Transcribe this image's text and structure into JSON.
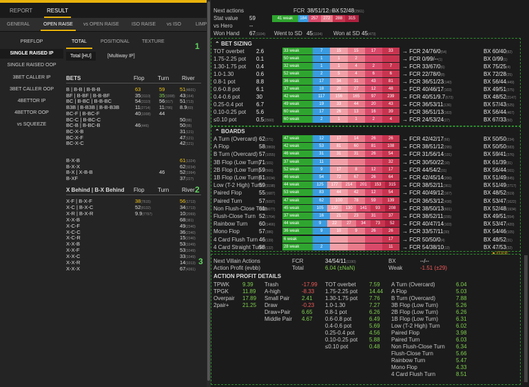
{
  "tabs_top": [
    "REPORT",
    "RESULT"
  ],
  "tabs_second": [
    "GENERAL",
    "OPEN RAISE",
    "vs OPEN RAISE",
    "ISO RAISE",
    "vs ISO",
    "LIMP"
  ],
  "left_nav": [
    "PREFLOP",
    "SINGLE RAISED IP",
    "SINGLE RAISED OOP",
    "3BET CALLER IP",
    "3BET CALLER OOP",
    "4BETTOR IP",
    "4BETTOR OOP",
    "vs SQUEEZE"
  ],
  "subtabs": [
    "TOTAL",
    "POSITIONAL",
    "TEXTURE"
  ],
  "pills": [
    "Total [HU]",
    "[Multiway IP]"
  ],
  "bets_header": {
    "bets": "BETS",
    "flop": "Flop",
    "turn": "Turn",
    "river": "River"
  },
  "bets_rows": [
    {
      "label": "B | B-B | B-B-B",
      "flop": "63",
      "turn": "59",
      "river": "51",
      "river_n": "(4601)"
    },
    {
      "label": "BF | B-BF | B-B-BF",
      "flop": "35",
      "flop_n": "(3110)",
      "turn": "35",
      "turn_n": "(1008)",
      "river": "43",
      "river_n": "(164)"
    },
    {
      "label": "BC | B-BC | B-B-BC",
      "flop": "54",
      "flop_n": "(3110)",
      "turn": "56",
      "turn_n": "(917)",
      "river": "51",
      "river_n": "(713)"
    },
    {
      "label": "B3B | B-B3B | B-B-B3B",
      "flop": "11",
      "flop_n": "(2714)",
      "turn": "11",
      "turn_n": "(786)",
      "river": "8.9",
      "river_n": "(60)"
    },
    {
      "label": "BC-F | B-BC-F",
      "flop": "40",
      "flop_n": "(1008)",
      "turn": "44",
      "turn_n": "",
      "river": "",
      "": ""
    },
    {
      "label": "BC-C | B-BC-C",
      "flop": "",
      "turn": "",
      "river": "50",
      "river_n": "(88)"
    },
    {
      "label": "BC-B | B-BC-B",
      "flop": "46",
      "flop_n": "(446)",
      "turn": "",
      "river": "50",
      "river_n": "(88)"
    },
    {
      "label": "BC-X-B",
      "flop": "",
      "turn": "",
      "river": "31",
      "river_n": "(121)"
    },
    {
      "label": "BC-X-F",
      "flop": "",
      "turn": "",
      "river": "47",
      "river_n": "(121)"
    },
    {
      "label": "BC-X-C",
      "flop": "",
      "turn": "",
      "river": "42",
      "river_n": "(121)"
    }
  ],
  "bets_rows_b": [
    {
      "label": "B-X-B",
      "flop": "",
      "turn": "",
      "river": "61",
      "river_n": "(1324)"
    },
    {
      "label": "B-X-X",
      "flop": "",
      "turn": "",
      "river": "62",
      "river_n": "(3234)"
    },
    {
      "label": "B-X | X-B-B",
      "flop": "",
      "turn": "46",
      "turn_n": "",
      "river": "52",
      "river_n": "(1994)"
    },
    {
      "label": "B-XF",
      "flop": "",
      "turn": "",
      "river": "37",
      "river_n": "(227)"
    }
  ],
  "xbehind_header": {
    "label": "X Behind | B-X Behind",
    "flop": "Flop",
    "turn": "Turn",
    "river": "River"
  },
  "xbehind_rows": [
    {
      "label": "X-F | B-X-F",
      "flop": "38",
      "flop_n": "(7615)",
      "turn": "",
      "river": "56",
      "river_n": "(1713)"
    },
    {
      "label": "X-C | B-X-C",
      "flop": "52",
      "flop_n": "(8132)",
      "turn": "",
      "river": "34",
      "river_n": "(1713)"
    },
    {
      "label": "X-R | B-X-R",
      "flop": "9.9",
      "flop_n": "(7797)",
      "turn": "",
      "river": "10",
      "river_n": "(2069)"
    },
    {
      "label": "X-X-B",
      "flop": "",
      "turn": "",
      "river": "68",
      "river_n": "(381)"
    },
    {
      "label": "X-C-F",
      "flop": "",
      "turn": "",
      "river": "49",
      "river_n": "(2340)"
    },
    {
      "label": "X-C-C",
      "flop": "",
      "turn": "",
      "river": "36",
      "river_n": "(2340)"
    },
    {
      "label": "X-C-R",
      "flop": "",
      "turn": "",
      "river": "15",
      "river_n": "(2340)"
    },
    {
      "label": "X-X-B",
      "flop": "",
      "turn": "",
      "river": "53",
      "river_n": "(1049)"
    },
    {
      "label": "X-X-F",
      "flop": "",
      "turn": "",
      "river": "53",
      "river_n": "(1049)"
    },
    {
      "label": "X-X-C",
      "flop": "",
      "turn": "",
      "river": "33",
      "river_n": "(1049)"
    },
    {
      "label": "X-X-R",
      "flop": "",
      "turn": "",
      "river": "14",
      "river_n": "(1013)"
    },
    {
      "label": "X-X-X",
      "flop": "",
      "turn": "",
      "river": "67",
      "river_n": "(4361)"
    }
  ],
  "markers": [
    "1",
    "2",
    "3"
  ],
  "top_summary": {
    "next_actions": "Next actions",
    "fcr_label": "FCR",
    "fcr": "38/51/12",
    "fcr_n": "(2560)",
    "bx_label": "BX",
    "bx": "52/48",
    "bx_n": "(2561)",
    "stat_value_label": "Stat value",
    "stat_value": "59",
    "vs_hero_label": "vs Hero",
    "vs_hero": "--",
    "won_hand_label": "Won Hand",
    "won_hand": "67",
    "won_hand_n": "(1104)",
    "wtsd_label": "Went to SD",
    "wtsd": "45",
    "wtsd_n": "(1104)",
    "wsd_label": "Won at SD",
    "wsd": "45",
    "wsd_n": "(473)",
    "bar": [
      {
        "t": "41 weak",
        "c": "#2fa52f",
        "w": 30
      },
      {
        "t": "184",
        "c": "#3a9be0",
        "w": 12
      },
      {
        "t": "257",
        "c": "#d94a6a",
        "w": 14
      },
      {
        "t": "272",
        "c": "#e87a8a",
        "w": 14
      },
      {
        "t": "288",
        "c": "#c8344f",
        "w": 14
      },
      {
        "t": "315",
        "c": "#b0203f",
        "w": 16
      }
    ]
  },
  "bet_sizing_title": "BET SIZING",
  "bet_sizing": [
    {
      "label": "TOT overbet",
      "v": "2.6",
      "weak": "33 weak",
      "segs": [
        "7",
        "15",
        "15",
        "17",
        "33"
      ],
      "fcr": "24/76/0",
      "fcr_n": "(54)",
      "bx": "60/40",
      "bx_n": "(82)"
    },
    {
      "label": "1.75-2.25 pot",
      "v": "0.1",
      "weak": "50 weak",
      "segs": [
        "1",
        "1",
        "2",
        "",
        ""
      ],
      "fcr": "0/99/--",
      "fcr_n": "(1)",
      "bx": "0/99",
      "bx_n": "(1)"
    },
    {
      "label": "1.30-1.75 pot",
      "v": "0.4",
      "weak": "32 weak",
      "segs": [
        "1",
        "1",
        "4",
        "2",
        "7"
      ],
      "fcr": "33/67/0",
      "fcr_n": "(6)",
      "bx": "75/25",
      "bx_n": "(4)"
    },
    {
      "label": "1.0-1.30",
      "v": "0.6",
      "weak": "52 weak",
      "segs": [
        "2",
        "5",
        "4",
        "6",
        "6"
      ],
      "fcr": "22/78/0",
      "fcr_n": "(8)",
      "bx": "72/28",
      "bx_n": "(25)"
    },
    {
      "label": "0.8-1 pot",
      "v": "8.8",
      "weak": "36 weak",
      "segs": [
        "17",
        "34",
        "31",
        "43",
        "81"
      ],
      "fcr": "36/51/23",
      "fcr_n": "(140)",
      "bx": "56/44",
      "bx_n": "(449)"
    },
    {
      "label": "0.6-0.8 pot",
      "v": "6.1",
      "weak": "37 weak",
      "segs": [
        "18",
        "20",
        "27",
        "12",
        "48"
      ],
      "fcr": "40/46/17",
      "fcr_n": "(103)",
      "bx": "49/51",
      "bx_n": "(375)"
    },
    {
      "label": "0.4-0.6 pot",
      "v": "30",
      "weak": "42 weak",
      "segs": [
        "117",
        "156",
        "165",
        "97",
        "239"
      ],
      "fcr": "40/51/9.7",
      "fcr_n": "(673)",
      "bx": "48/52",
      "bx_n": "(2147)"
    },
    {
      "label": "0.25-0.4 pot",
      "v": "6.7",
      "weak": "49 weak",
      "segs": [
        "19",
        "33",
        "44",
        "20",
        "43"
      ],
      "fcr": "36/53/11",
      "fcr_n": "(136)",
      "bx": "57/43",
      "bx_n": "(525)"
    },
    {
      "label": "0.10-0.25 pot",
      "v": "5.6",
      "weak": "60 weak",
      "segs": [
        "17",
        "26",
        "13",
        "16",
        "39"
      ],
      "fcr": "36/51/13",
      "fcr_n": "(163)",
      "bx": "56/44",
      "bx_n": "(467)"
    },
    {
      "label": "≤0.10 pot",
      "v": "0.5",
      "v_n": "(2560)",
      "weak": "60 weak",
      "segs": [
        "2",
        "1",
        "1",
        "2",
        "4"
      ],
      "fcr": "24/53/24",
      "fcr_n": "(27)",
      "bx": "67/33",
      "bx_n": "(50)"
    }
  ],
  "boards_title": "BOARDS",
  "boards": [
    {
      "label": "A Turn (Overcard)",
      "v": "62",
      "v_n": "(271)",
      "weak": "47 weak",
      "segs": [
        "12",
        "17",
        "14",
        "26",
        "26"
      ],
      "fcr": "42/42/17",
      "fcr_n": "(66)",
      "bx": "50/50",
      "bx_n": "(234)"
    },
    {
      "label": "A Flop",
      "v": "58",
      "v_n": "(2869)",
      "weak": "42 weak",
      "segs": [
        "53",
        "81",
        "60",
        "81",
        "108"
      ],
      "fcr": "38/51/12",
      "fcr_n": "(295)",
      "bx": "50/50",
      "bx_n": "(583)"
    },
    {
      "label": "B Turn (Overcard)",
      "v": "57",
      "v_n": "(1055)",
      "weak": "46 weak",
      "segs": [
        "31",
        "31",
        "31",
        "26",
        "54"
      ],
      "fcr": "31/56/14",
      "fcr_n": "(131)",
      "bx": "59/41",
      "bx_n": "(376)"
    },
    {
      "label": "3B Flop (Low Turn)",
      "v": "71",
      "v_n": "(101)",
      "weak": "37 weak",
      "segs": [
        "11",
        "",
        "",
        "",
        "32"
      ],
      "fcr": "30/50/22",
      "fcr_n": "(10)",
      "bx": "61/39",
      "bx_n": "(31)"
    },
    {
      "label": "2B Flop (Low Turn)",
      "v": "59",
      "v_n": "(566)",
      "weak": "52 weak",
      "segs": [
        "9",
        "17",
        "8",
        "12",
        "17"
      ],
      "fcr": "44/54/2",
      "fcr_n": "(31)",
      "bx": "56/44",
      "bx_n": "(161)"
    },
    {
      "label": "1B Flop (Low Turn)",
      "v": "61",
      "v_n": "(2034)",
      "weak": "46 weak",
      "segs": [
        "54",
        "72",
        "67",
        "26",
        "64"
      ],
      "fcr": "42/45/14",
      "fcr_n": "(206)",
      "bx": "51/49",
      "bx_n": "(845)"
    },
    {
      "label": "Low (T-2 High) Turn",
      "v": "59",
      "v_n": "(3198)",
      "weak": "44 weak",
      "segs": [
        "125",
        "177",
        "214",
        "201",
        "153",
        "315"
      ],
      "fcr": "38/52/11",
      "fcr_n": "(361)",
      "bx": "51/49",
      "bx_n": "(2717)"
    },
    {
      "label": "Paired Flop",
      "v": "55",
      "v_n": "(1687)",
      "weak": "53 weak",
      "segs": [
        "83",
        "44",
        "42",
        "12",
        "54"
      ],
      "fcr": "40/49/12",
      "fcr_n": "(167)",
      "bx": "48/52",
      "bx_n": "(519)"
    },
    {
      "label": "Paired Turn",
      "v": "57",
      "v_n": "(5097)",
      "weak": "47 weak",
      "segs": [
        "62",
        "100",
        "78",
        "59",
        "139"
      ],
      "fcr": "36/53/12",
      "fcr_n": "(438)",
      "bx": "53/47",
      "bx_n": "(1622)"
    },
    {
      "label": "Non Flush-Close Turn",
      "v": "61",
      "v_n": "(5677)",
      "weak": "45 weak",
      "segs": [
        "105",
        "120",
        "130",
        "141",
        "93",
        "208"
      ],
      "fcr": "38/50/13",
      "fcr_n": "(601)",
      "bx": "52/48",
      "bx_n": "(1934)"
    },
    {
      "label": "Flush-Close Turn",
      "v": "52",
      "v_n": "(1764)",
      "weak": "37 weak",
      "segs": [
        "16",
        "21",
        "23",
        "31",
        "37"
      ],
      "fcr": "38/52/11",
      "fcr_n": "(155)",
      "bx": "49/51",
      "bx_n": "(554)"
    },
    {
      "label": "Rainbow Turn",
      "v": "60",
      "v_n": "(1466)",
      "weak": "44 weak",
      "segs": [
        "9",
        "22",
        "27",
        "34",
        "73",
        "52"
      ],
      "fcr": "40/47/14",
      "fcr_n": "(103)",
      "bx": "53/47",
      "bx_n": "(420)"
    },
    {
      "label": "Mono Flop",
      "v": "57",
      "v_n": "(386)",
      "weak": "36 weak",
      "segs": [
        "9",
        "10",
        "9",
        "26",
        "26"
      ],
      "fcr": "33/57/11",
      "fcr_n": "(30)",
      "bx": "54/46",
      "bx_n": "(105)"
    },
    {
      "label": "4 Card Flush Turn",
      "v": "46",
      "v_n": "(139)",
      "weak": "6 weak",
      "segs": [
        "",
        "",
        "",
        "",
        "17"
      ],
      "fcr": "50/50/0",
      "fcr_n": "(4)",
      "bx": "48/52",
      "bx_n": "(31)"
    },
    {
      "label": "4 Card Straight Turn",
      "v": "58",
      "v_n": "(132)",
      "weak": "28 weak",
      "segs": [
        "2",
        "",
        "",
        "",
        "11"
      ],
      "fcr": "54/38/10",
      "fcr_n": "(13)",
      "bx": "47/53",
      "bx_n": "(32)"
    }
  ],
  "edge_label": "EDGE",
  "villain": {
    "next_label": "Next Villain Actions",
    "ap_label": "Action Profit (evbb)",
    "fcr_label": "FCR",
    "total_label": "Total",
    "fcr": "34/54/11",
    "fcr_n": "(1190)",
    "total": "6.04",
    "total_sub": "(±NaN)",
    "bx_label": "BX",
    "weak_label": "Weak",
    "bx": "--/--",
    "weak": "-1.51",
    "weak_sub": "(±29)"
  },
  "apd_title": "ACTION PROFIT DETAILS",
  "apd_col1": [
    {
      "l": "TPWK",
      "v": "9.39"
    },
    {
      "l": "TPGK",
      "v": "11.89"
    },
    {
      "l": "Overpair",
      "v": "17.89"
    },
    {
      "l": "2pair+",
      "v": "21.25"
    }
  ],
  "apd_col2": [
    {
      "l": "Trash",
      "v": "-17.99"
    },
    {
      "l": "A-high",
      "v": "-8.33"
    },
    {
      "l": "Small Pair",
      "v": "2.41"
    },
    {
      "l": "Draw",
      "v": "-0.23"
    },
    {
      "l": "Draw+Pair",
      "v": "6.65"
    },
    {
      "l": "Middle Pair",
      "v": "4.67"
    }
  ],
  "apd_col3": [
    {
      "l": "TOT overbet",
      "v": "7.59"
    },
    {
      "l": "1.75-2.25 pot",
      "v": "14.44"
    },
    {
      "l": "1.30-1.75 pot",
      "v": "7.76"
    },
    {
      "l": "1.0-1.30",
      "v": "7.27"
    },
    {
      "l": "0.8-1 pot",
      "v": "6.26"
    },
    {
      "l": "0.6-0.8 pot",
      "v": "6.49"
    },
    {
      "l": "0.4-0.6 pot",
      "v": "5.69"
    },
    {
      "l": "0.25-0.4 pot",
      "v": "4.56"
    },
    {
      "l": "0.10-0.25 pot",
      "v": "5.88"
    },
    {
      "l": "≤0.10 pot",
      "v": "0.48"
    }
  ],
  "apd_col4": [
    {
      "l": "A Turn (Overcard)",
      "v": "6.04"
    },
    {
      "l": "A Flop",
      "v": "5.03"
    },
    {
      "l": "B Turn (Overcard)",
      "v": "7.88"
    },
    {
      "l": "3B Flop (Low Turn)",
      "v": "5.26"
    },
    {
      "l": "2B Flop (Low Turn)",
      "v": "6.26"
    },
    {
      "l": "1B Flop (Low Turn)",
      "v": "6.31"
    },
    {
      "l": "Low (T-2 High) Turn",
      "v": "6.02"
    },
    {
      "l": "Paired Flop",
      "v": "3.98"
    },
    {
      "l": "Paired Turn",
      "v": "6.03"
    },
    {
      "l": "Non Flush-Close Turn",
      "v": "6.34"
    },
    {
      "l": "Flush-Close Turn",
      "v": "5.66"
    },
    {
      "l": "Rainbow Turn",
      "v": "5.47"
    },
    {
      "l": "Mono Flop",
      "v": "4.33"
    },
    {
      "l": "4 Card Flush Turn",
      "v": "8.51"
    }
  ],
  "colors": {
    "weak": "#2fa52f",
    "blue": "#3a9be0",
    "pink": "#e87a8a",
    "red": "#c8344f",
    "dark_red": "#b0203f",
    "accent": "#e8b20c"
  }
}
